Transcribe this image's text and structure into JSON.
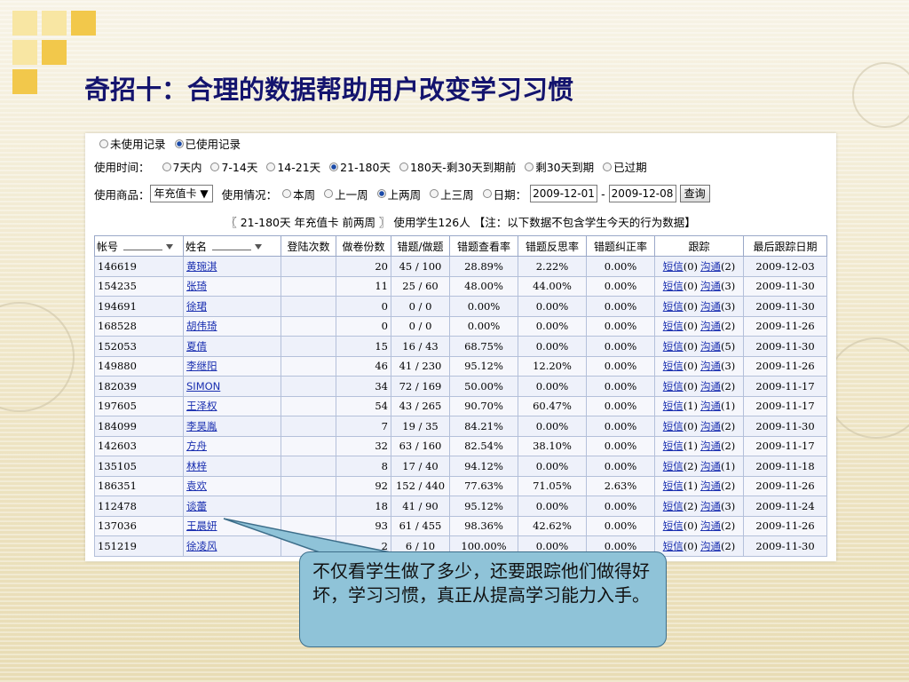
{
  "slide": {
    "title": "奇招十：合理的数据帮助用户改变学习习惯",
    "callout": "不仅看学生做了多少，还要跟踪他们做得好坏，学习习惯，真正从提高学习能力入手。"
  },
  "filters": {
    "record_options": [
      {
        "label": "未使用记录",
        "selected": false
      },
      {
        "label": "已使用记录",
        "selected": true
      }
    ],
    "time_label": "使用时间：",
    "time_options": [
      {
        "label": "7天内",
        "selected": false
      },
      {
        "label": "7-14天",
        "selected": false
      },
      {
        "label": "14-21天",
        "selected": false
      },
      {
        "label": "21-180天",
        "selected": true
      },
      {
        "label": "180天-剩30天到期前",
        "selected": false
      },
      {
        "label": "剩30天到期",
        "selected": false
      },
      {
        "label": "已过期",
        "selected": false
      }
    ],
    "product_label": "使用商品：",
    "product_value": "年充值卡 ▼",
    "usage_label": "使用情况：",
    "usage_options": [
      {
        "label": "本周",
        "selected": false
      },
      {
        "label": "上一周",
        "selected": false
      },
      {
        "label": "上两周",
        "selected": true
      },
      {
        "label": "上三周",
        "selected": false
      },
      {
        "label": "日期：",
        "selected": false
      }
    ],
    "date_from": "2009-12-01",
    "date_sep": "-",
    "date_to": "2009-12-08",
    "query_button": "查询"
  },
  "summary": "〖 21-180天 年充值卡 前两周 〗 使用学生126人 【注：以下数据不包含学生今天的行为数据】",
  "table": {
    "headers": [
      "帐号",
      "姓名",
      "登陆次数",
      "做卷份数",
      "错题/做题",
      "错题查看率",
      "错题反思率",
      "错题纠正率",
      "跟踪",
      "最后跟踪日期"
    ],
    "sms_label": "短信",
    "talk_label": "沟通",
    "rows": [
      {
        "id": "146619",
        "name": "黄琬淇",
        "logins": "",
        "papers": "20",
        "ratio": "45 / 100",
        "view": "28.89%",
        "reflect": "2.22%",
        "correct": "0.00%",
        "sms": "(0)",
        "talk": "(2)",
        "date": "2009-12-03"
      },
      {
        "id": "154235",
        "name": "张琦",
        "logins": "",
        "papers": "11",
        "ratio": "25 / 60",
        "view": "48.00%",
        "reflect": "44.00%",
        "correct": "0.00%",
        "sms": "(0)",
        "talk": "(3)",
        "date": "2009-11-30"
      },
      {
        "id": "194691",
        "name": "徐珺",
        "logins": "",
        "papers": "0",
        "ratio": "0 / 0",
        "view": "0.00%",
        "reflect": "0.00%",
        "correct": "0.00%",
        "sms": "(0)",
        "talk": "(3)",
        "date": "2009-11-30"
      },
      {
        "id": "168528",
        "name": "胡伟琦",
        "logins": "",
        "papers": "0",
        "ratio": "0 / 0",
        "view": "0.00%",
        "reflect": "0.00%",
        "correct": "0.00%",
        "sms": "(0)",
        "talk": "(2)",
        "date": "2009-11-26"
      },
      {
        "id": "152053",
        "name": "夏倩",
        "logins": "",
        "papers": "15",
        "ratio": "16 / 43",
        "view": "68.75%",
        "reflect": "0.00%",
        "correct": "0.00%",
        "sms": "(0)",
        "talk": "(5)",
        "date": "2009-11-30"
      },
      {
        "id": "149880",
        "name": "李继阳",
        "logins": "",
        "papers": "46",
        "ratio": "41 / 230",
        "view": "95.12%",
        "reflect": "12.20%",
        "correct": "0.00%",
        "sms": "(0)",
        "talk": "(3)",
        "date": "2009-11-26"
      },
      {
        "id": "182039",
        "name": "SIMON",
        "logins": "",
        "papers": "34",
        "ratio": "72 / 169",
        "view": "50.00%",
        "reflect": "0.00%",
        "correct": "0.00%",
        "sms": "(0)",
        "talk": "(2)",
        "date": "2009-11-17"
      },
      {
        "id": "197605",
        "name": "王泽权",
        "logins": "",
        "papers": "54",
        "ratio": "43 / 265",
        "view": "90.70%",
        "reflect": "60.47%",
        "correct": "0.00%",
        "sms": "(1)",
        "talk": "(1)",
        "date": "2009-11-17"
      },
      {
        "id": "184099",
        "name": "李昊胤",
        "logins": "",
        "papers": "7",
        "ratio": "19 / 35",
        "view": "84.21%",
        "reflect": "0.00%",
        "correct": "0.00%",
        "sms": "(0)",
        "talk": "(2)",
        "date": "2009-11-30"
      },
      {
        "id": "142603",
        "name": "方舟",
        "logins": "",
        "papers": "32",
        "ratio": "63 / 160",
        "view": "82.54%",
        "reflect": "38.10%",
        "correct": "0.00%",
        "sms": "(1)",
        "talk": "(2)",
        "date": "2009-11-17"
      },
      {
        "id": "135105",
        "name": "林梓",
        "logins": "",
        "papers": "8",
        "ratio": "17 / 40",
        "view": "94.12%",
        "reflect": "0.00%",
        "correct": "0.00%",
        "sms": "(2)",
        "talk": "(1)",
        "date": "2009-11-18"
      },
      {
        "id": "186351",
        "name": "袁欢",
        "logins": "",
        "papers": "92",
        "ratio": "152 / 440",
        "view": "77.63%",
        "reflect": "71.05%",
        "correct": "2.63%",
        "sms": "(1)",
        "talk": "(2)",
        "date": "2009-11-26"
      },
      {
        "id": "112478",
        "name": "谈蕾",
        "logins": "",
        "papers": "18",
        "ratio": "41 / 90",
        "view": "95.12%",
        "reflect": "0.00%",
        "correct": "0.00%",
        "sms": "(2)",
        "talk": "(3)",
        "date": "2009-11-24"
      },
      {
        "id": "137036",
        "name": "王晨妍",
        "logins": "",
        "papers": "93",
        "ratio": "61 / 455",
        "view": "98.36%",
        "reflect": "42.62%",
        "correct": "0.00%",
        "sms": "(0)",
        "talk": "(2)",
        "date": "2009-11-26"
      },
      {
        "id": "151219",
        "name": "徐凌风",
        "logins": "",
        "papers": "2",
        "ratio": "6 / 10",
        "view": "100.00%",
        "reflect": "0.00%",
        "correct": "0.00%",
        "sms": "(0)",
        "talk": "(2)",
        "date": "2009-11-30"
      }
    ]
  }
}
